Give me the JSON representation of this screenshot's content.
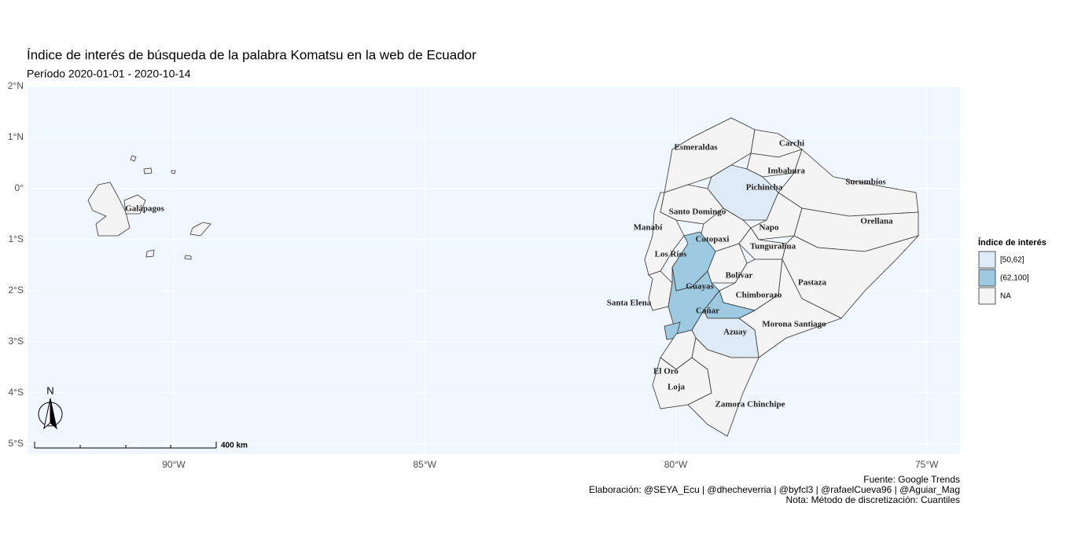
{
  "map": {
    "title": "Índice de interés de búsqueda de la palabra Komatsu en la web de Ecuador",
    "subtitle": "Período 2020-01-01 - 2020-10-14",
    "latticks": [
      {
        "value": 2,
        "label": "2°N"
      },
      {
        "value": 1,
        "label": "1°N"
      },
      {
        "value": 0,
        "label": "0°"
      },
      {
        "value": -1,
        "label": "1°S"
      },
      {
        "value": -2,
        "label": "2°S"
      },
      {
        "value": -3,
        "label": "3°S"
      },
      {
        "value": -4,
        "label": "4°S"
      },
      {
        "value": -5,
        "label": "5°S"
      }
    ],
    "lonticks": [
      {
        "value": -90,
        "label": "90°W"
      },
      {
        "value": -85,
        "label": "85°W"
      },
      {
        "value": -80,
        "label": "80°W"
      },
      {
        "value": -75,
        "label": "75°W"
      }
    ],
    "legend": {
      "title": "Índice de interés",
      "items": [
        {
          "label": "[50,62]",
          "color": "#deebf7"
        },
        {
          "label": "(62,100]",
          "color": "#9ecae1"
        },
        {
          "label": "NA",
          "color": "#f4f4f4"
        }
      ]
    },
    "provinces": [
      {
        "name": "Esmeraldas",
        "category": "NA"
      },
      {
        "name": "Carchi",
        "category": "NA"
      },
      {
        "name": "Imbabura",
        "category": "NA"
      },
      {
        "name": "Sucumbíos",
        "category": "NA"
      },
      {
        "name": "Pichincha",
        "category": "[50,62]"
      },
      {
        "name": "Santo Domingo",
        "category": "NA"
      },
      {
        "name": "Manabí",
        "category": "NA"
      },
      {
        "name": "Napo",
        "category": "NA"
      },
      {
        "name": "Orellana",
        "category": "NA"
      },
      {
        "name": "Cotopaxi",
        "category": "NA"
      },
      {
        "name": "Los Ríos",
        "category": "(62,100]"
      },
      {
        "name": "Tungurahua",
        "category": "NA"
      },
      {
        "name": "Pastaza",
        "category": "NA"
      },
      {
        "name": "Bolívar",
        "category": "NA"
      },
      {
        "name": "Chimborazo",
        "category": "NA"
      },
      {
        "name": "Santa Elena",
        "category": "NA"
      },
      {
        "name": "Guayas",
        "category": "(62,100]"
      },
      {
        "name": "Cañar",
        "category": "(62,100]"
      },
      {
        "name": "Morona Santiago",
        "category": "NA"
      },
      {
        "name": "Azuay",
        "category": "[50,62]"
      },
      {
        "name": "El Oro",
        "category": "NA"
      },
      {
        "name": "Loja",
        "category": "NA"
      },
      {
        "name": "Zamora Chinchipe",
        "category": "NA"
      },
      {
        "name": "Galápagos",
        "category": "NA"
      }
    ],
    "north": "N",
    "scale_label": "400 km",
    "caption": [
      "Fuente: Google Trends",
      "Elaboración:  @SEYA_Ecu | @dhecheverria | @byfcl3 | @rafaelCueva96 | @Aguiar_Mag",
      "Nota: Método de discretización: Cuantiles"
    ]
  }
}
